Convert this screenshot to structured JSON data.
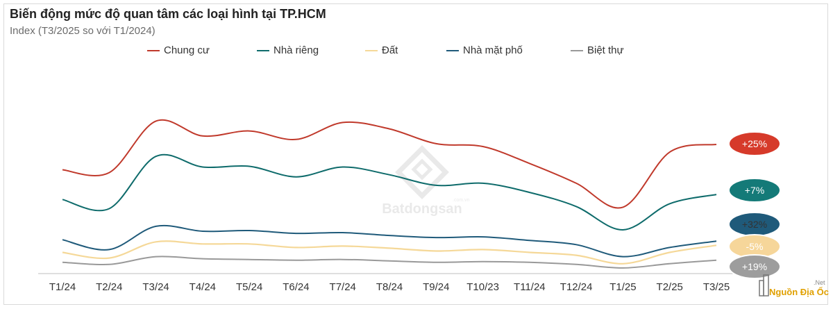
{
  "title": "Biến động mức độ quan tâm các loại hình tại TP.HCM",
  "subtitle": "Index (T3/2025 so với T1/2024)",
  "watermark": "Batdongsan",
  "watermark_domain": ".com.vn",
  "source_label": "Nguồn Địa Ốc",
  "source_suffix": ".Net",
  "colors": {
    "chung_cu": "#c0392b",
    "nha_rieng": "#0e6b6b",
    "dat": "#f5d898",
    "nha_mat_pho": "#1f5a7a",
    "biet_thu": "#999999"
  },
  "chart_data": {
    "type": "line",
    "title": "Biến động mức độ quan tâm các loại hình tại TP.HCM",
    "subtitle": "Index (T3/2025 so với T1/2024)",
    "xlabel": "",
    "ylabel": "",
    "grid": false,
    "legend_position": "top",
    "categories": [
      "T1/24",
      "T2/24",
      "T3/24",
      "T4/24",
      "T5/24",
      "T6/24",
      "T7/24",
      "T8/24",
      "T9/24",
      "T10/23",
      "T11/24",
      "T12/24",
      "T1/25",
      "T2/25",
      "T3/25"
    ],
    "ylim": [
      0,
      240
    ],
    "series": [
      {
        "name": "Chung cư",
        "values": [
          147,
          143,
          216,
          195,
          202,
          190,
          214,
          205,
          184,
          180,
          156,
          128,
          94,
          172,
          183
        ],
        "change_label": "+25%"
      },
      {
        "name": "Nhà riêng",
        "values": [
          105,
          92,
          166,
          151,
          152,
          137,
          151,
          140,
          125,
          128,
          115,
          95,
          62,
          99,
          112
        ],
        "change_label": "+7%"
      },
      {
        "name": "Đất",
        "values": [
          30,
          22,
          45,
          42,
          42,
          37,
          39,
          36,
          32,
          34,
          30,
          26,
          14,
          30,
          40
        ],
        "change_label": "+32%"
      },
      {
        "name": "Nhà mặt phố",
        "values": [
          48,
          34,
          67,
          60,
          61,
          57,
          58,
          54,
          51,
          52,
          47,
          41,
          24,
          37,
          46
        ],
        "change_label": "-5%"
      },
      {
        "name": "Biệt thự",
        "values": [
          16,
          13,
          24,
          21,
          20,
          19,
          20,
          18,
          16,
          17,
          16,
          13,
          8,
          14,
          19
        ],
        "change_label": "+19%"
      }
    ]
  }
}
